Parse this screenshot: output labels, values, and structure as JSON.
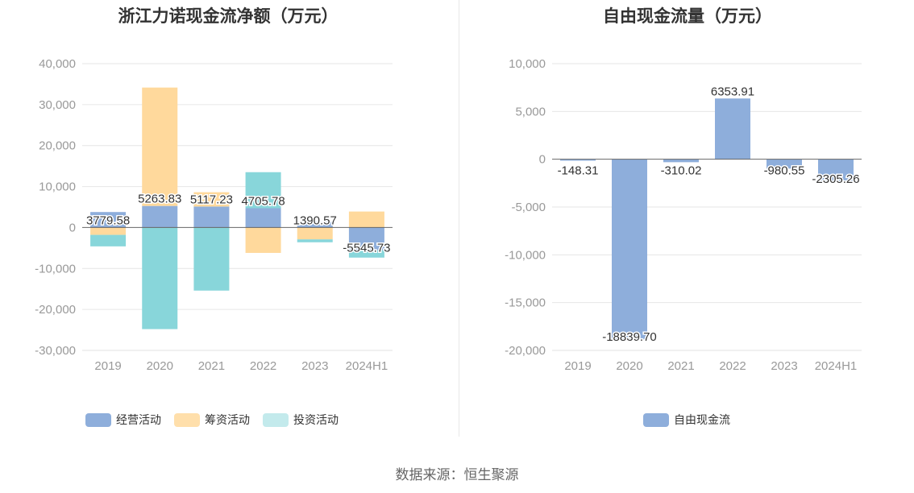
{
  "source_text": "数据来源：恒生聚源",
  "chart_data": [
    {
      "type": "bar",
      "stacked": true,
      "title": "浙江力诺现金流净额（万元）",
      "categories": [
        "2019",
        "2020",
        "2021",
        "2022",
        "2023",
        "2024H1"
      ],
      "ylim": [
        -30000,
        40000
      ],
      "yticks": [
        -30000,
        -20000,
        -10000,
        0,
        10000,
        20000,
        30000,
        40000
      ],
      "ytick_labels": [
        "-30,000",
        "-20,000",
        "-10,000",
        "0",
        "10,000",
        "20,000",
        "30,000",
        "40,000"
      ],
      "grid": true,
      "legend_position": "bottom",
      "series": [
        {
          "name": "经营活动",
          "color": "#8eaedb",
          "values": [
            3779.58,
            5263.83,
            5117.23,
            4705.78,
            1390.57,
            -5545.73
          ]
        },
        {
          "name": "筹资活动",
          "color": "#ffd99c",
          "values": [
            -1800,
            28900,
            3500,
            -6200,
            -2900,
            3900
          ]
        },
        {
          "name": "投资活动",
          "color": "#88d6da",
          "values": [
            -2800,
            -24800,
            -15400,
            8800,
            -700,
            -1800
          ]
        }
      ],
      "data_labels": [
        "3779.58",
        "5263.83",
        "5117.23",
        "4705.78",
        "1390.57",
        "-5545.73"
      ]
    },
    {
      "type": "bar",
      "title": "自由现金流量（万元）",
      "categories": [
        "2019",
        "2020",
        "2021",
        "2022",
        "2023",
        "2024H1"
      ],
      "ylim": [
        -20000,
        10000
      ],
      "yticks": [
        -20000,
        -15000,
        -10000,
        -5000,
        0,
        5000,
        10000
      ],
      "ytick_labels": [
        "-20,000",
        "-15,000",
        "-10,000",
        "-5,000",
        "0",
        "5,000",
        "10,000"
      ],
      "grid": true,
      "legend_position": "bottom",
      "series": [
        {
          "name": "自由现金流",
          "color": "#8eaedb",
          "values": [
            -148.31,
            -18839.7,
            -310.02,
            6353.91,
            -980.55,
            -2305.26
          ]
        }
      ],
      "data_labels": [
        "-148.31",
        "-18839.70",
        "-310.02",
        "6353.91",
        "-980.55",
        "-2305.26"
      ]
    }
  ]
}
